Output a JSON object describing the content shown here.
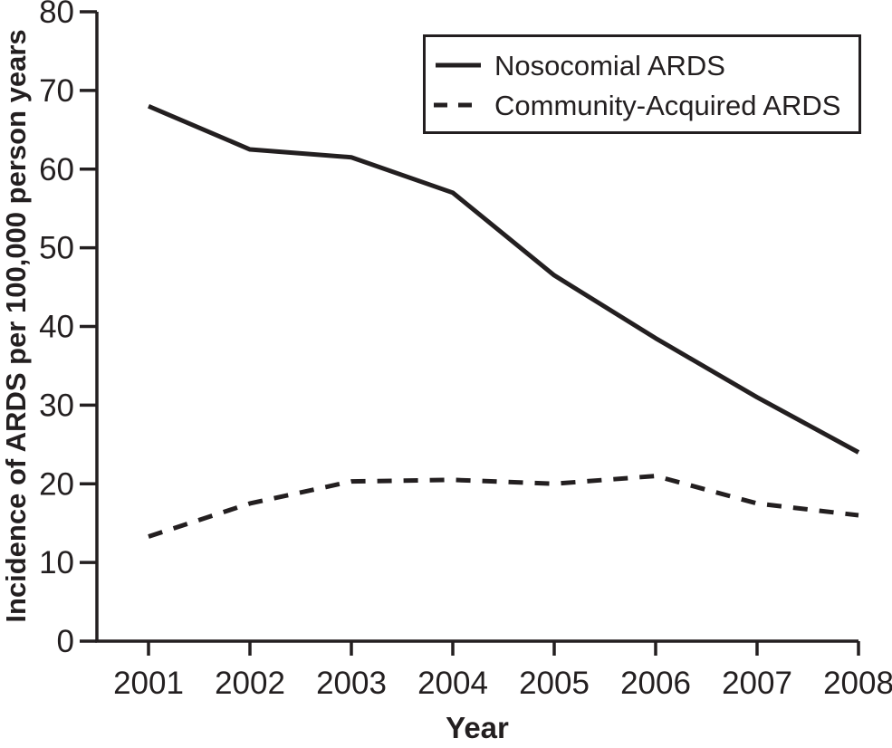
{
  "figure": {
    "background": "#ffffff",
    "ink_color": "#231f20"
  },
  "chart_data": {
    "type": "line",
    "title": "",
    "xlabel": "Year",
    "ylabel": "Incidence of ARDS per 100,000 person years",
    "categories": [
      "2001",
      "2002",
      "2003",
      "2004",
      "2005",
      "2006",
      "2007",
      "2008"
    ],
    "series": [
      {
        "name": "Nosocomial ARDS",
        "style": "solid",
        "values": [
          68,
          62.5,
          61.5,
          57,
          46.5,
          38.5,
          31,
          24
        ]
      },
      {
        "name": "Community-Acquired ARDS",
        "style": "dashed",
        "values": [
          13.3,
          17.5,
          20.3,
          20.5,
          20,
          21,
          17.5,
          16
        ]
      }
    ],
    "ylim": [
      0,
      80
    ],
    "yticks": [
      0,
      10,
      20,
      30,
      40,
      50,
      60,
      70,
      80
    ],
    "ytick_labels": [
      "0",
      "10",
      "20",
      "30",
      "40",
      "50",
      "60",
      "70",
      "80"
    ],
    "grid": false,
    "legend_position": "top-right"
  }
}
